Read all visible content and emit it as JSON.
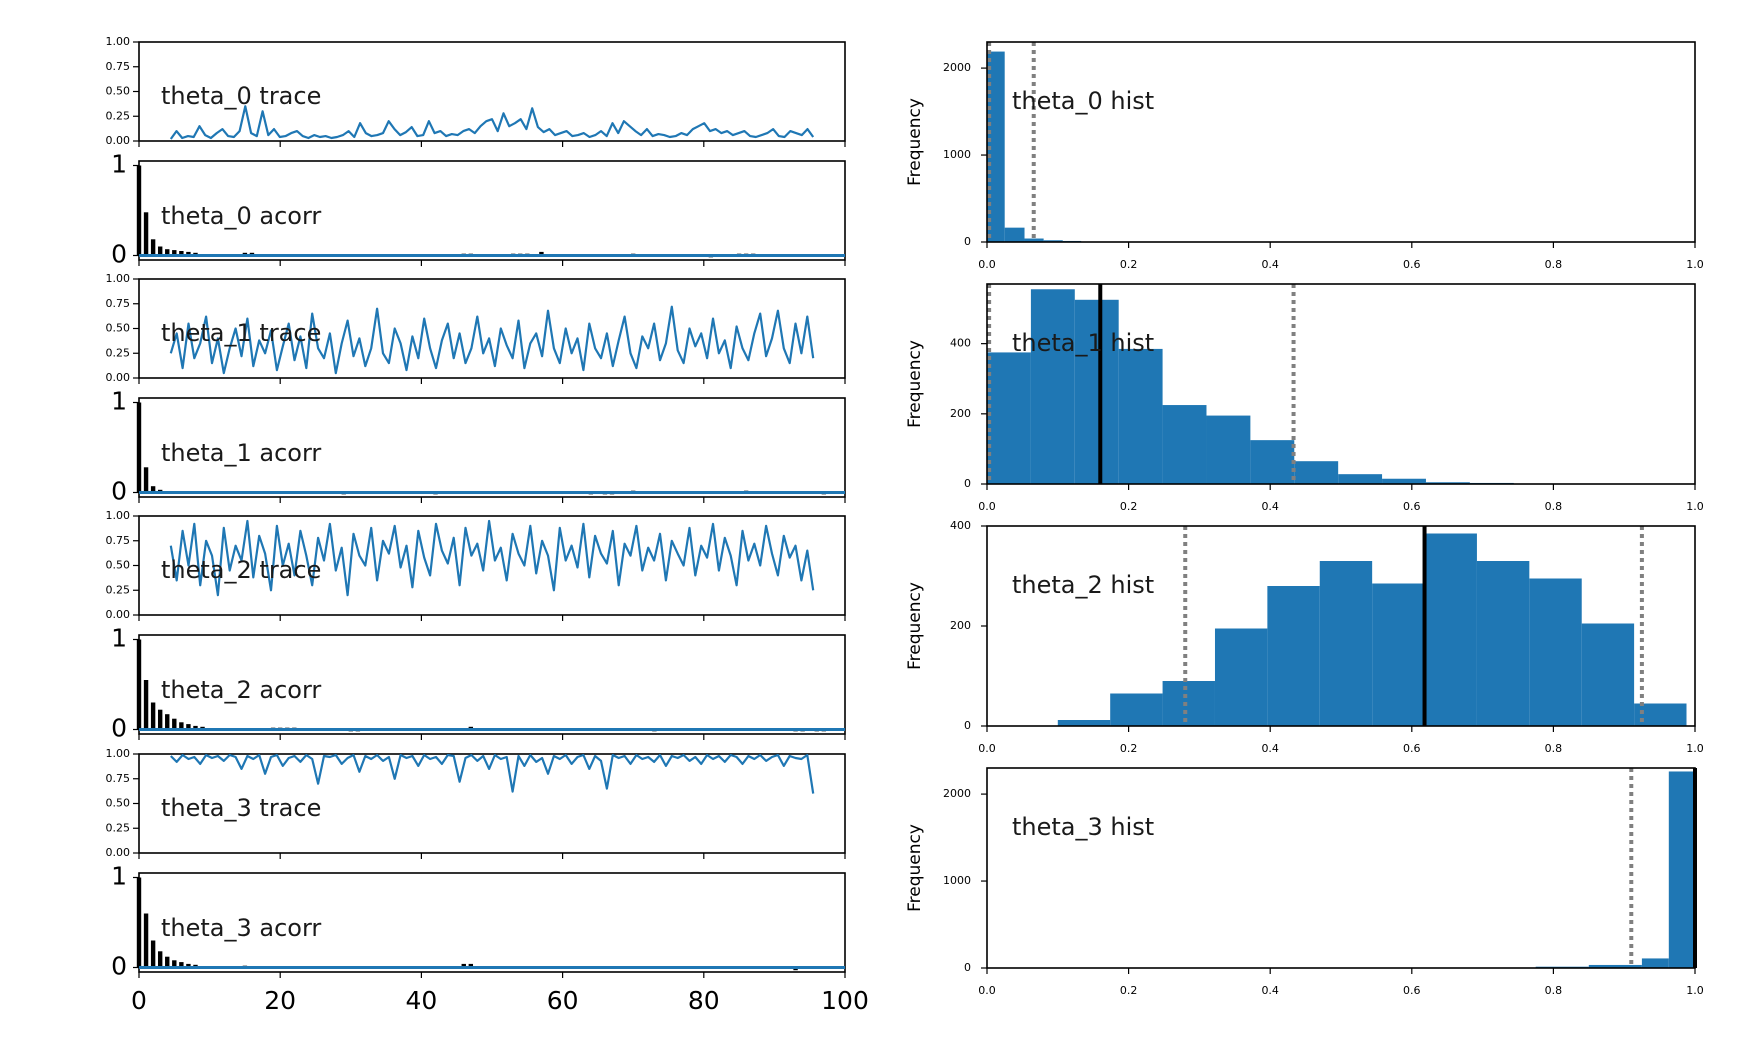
{
  "colors": {
    "series": "#1f77b4",
    "mean": "#000000",
    "hpd": "#808080",
    "acorr_bar": "#000000"
  },
  "chart_data": [
    {
      "id": "theta_0_trace",
      "type": "line",
      "title": "theta_0 trace",
      "xlim": [
        0,
        100
      ],
      "ylim": [
        0,
        1
      ],
      "yticks": [
        "0.00",
        "0.25",
        "0.50",
        "0.75",
        "1.00"
      ],
      "series": [
        {
          "values": [
            0.02,
            0.1,
            0.03,
            0.05,
            0.04,
            0.15,
            0.06,
            0.03,
            0.08,
            0.12,
            0.05,
            0.04,
            0.1,
            0.35,
            0.08,
            0.05,
            0.3,
            0.06,
            0.12,
            0.04,
            0.05,
            0.08,
            0.1,
            0.05,
            0.03,
            0.06,
            0.04,
            0.05,
            0.03,
            0.04,
            0.06,
            0.1,
            0.04,
            0.18,
            0.08,
            0.05,
            0.06,
            0.08,
            0.2,
            0.12,
            0.06,
            0.09,
            0.14,
            0.05,
            0.06,
            0.2,
            0.08,
            0.1,
            0.05,
            0.07,
            0.06,
            0.1,
            0.12,
            0.08,
            0.15,
            0.2,
            0.22,
            0.1,
            0.28,
            0.15,
            0.18,
            0.22,
            0.12,
            0.33,
            0.14,
            0.09,
            0.12,
            0.06,
            0.08,
            0.1,
            0.05,
            0.06,
            0.08,
            0.04,
            0.06,
            0.1,
            0.05,
            0.18,
            0.08,
            0.2,
            0.15,
            0.1,
            0.06,
            0.12,
            0.05,
            0.07,
            0.06,
            0.04,
            0.05,
            0.08,
            0.06,
            0.12,
            0.15,
            0.18,
            0.1,
            0.12,
            0.08,
            0.1,
            0.06,
            0.08,
            0.1,
            0.05,
            0.04,
            0.06,
            0.08,
            0.12,
            0.05,
            0.04,
            0.1,
            0.08,
            0.06,
            0.12,
            0.04
          ]
        }
      ]
    },
    {
      "id": "theta_0_acorr",
      "type": "bar",
      "title": "theta_0 acorr",
      "xlim": [
        0,
        100
      ],
      "ylim": [
        -0.05,
        1.05
      ],
      "yticks": [
        "0",
        "1"
      ],
      "lags": [
        0,
        1,
        2,
        3,
        4,
        5,
        6,
        7,
        8,
        15,
        16,
        46,
        47,
        53,
        54,
        55,
        57,
        70,
        81,
        85,
        86,
        87
      ],
      "values": [
        1.0,
        0.48,
        0.18,
        0.1,
        0.07,
        0.06,
        0.05,
        0.04,
        0.03,
        0.03,
        0.03,
        0.02,
        0.02,
        0.02,
        0.02,
        0.02,
        0.04,
        0.02,
        -0.02,
        0.02,
        0.02,
        0.02
      ]
    },
    {
      "id": "theta_1_trace",
      "type": "line",
      "title": "theta_1 trace",
      "xlim": [
        0,
        100
      ],
      "ylim": [
        0,
        1
      ],
      "yticks": [
        "0.00",
        "0.25",
        "0.50",
        "0.75",
        "1.00"
      ],
      "series": [
        {
          "values": [
            0.25,
            0.45,
            0.1,
            0.55,
            0.2,
            0.35,
            0.62,
            0.15,
            0.4,
            0.05,
            0.3,
            0.5,
            0.22,
            0.6,
            0.12,
            0.38,
            0.25,
            0.48,
            0.08,
            0.32,
            0.55,
            0.18,
            0.42,
            0.1,
            0.65,
            0.3,
            0.2,
            0.45,
            0.05,
            0.35,
            0.58,
            0.22,
            0.4,
            0.12,
            0.3,
            0.7,
            0.25,
            0.15,
            0.5,
            0.35,
            0.08,
            0.42,
            0.2,
            0.6,
            0.3,
            0.1,
            0.38,
            0.55,
            0.2,
            0.45,
            0.15,
            0.3,
            0.62,
            0.25,
            0.4,
            0.12,
            0.5,
            0.33,
            0.2,
            0.58,
            0.1,
            0.35,
            0.45,
            0.22,
            0.68,
            0.3,
            0.15,
            0.5,
            0.25,
            0.4,
            0.08,
            0.55,
            0.3,
            0.2,
            0.45,
            0.12,
            0.38,
            0.62,
            0.25,
            0.1,
            0.42,
            0.3,
            0.55,
            0.18,
            0.35,
            0.72,
            0.28,
            0.15,
            0.5,
            0.32,
            0.45,
            0.2,
            0.6,
            0.25,
            0.38,
            0.1,
            0.52,
            0.3,
            0.18,
            0.45,
            0.65,
            0.22,
            0.4,
            0.68,
            0.3,
            0.15,
            0.55,
            0.25,
            0.62,
            0.2
          ]
        }
      ]
    },
    {
      "id": "theta_1_acorr",
      "type": "bar",
      "title": "theta_1 acorr",
      "xlim": [
        0,
        100
      ],
      "ylim": [
        -0.05,
        1.05
      ],
      "yticks": [
        "0",
        "1"
      ],
      "lags": [
        0,
        1,
        2,
        3,
        29,
        42,
        64,
        66,
        67,
        70,
        86,
        97
      ],
      "values": [
        1.0,
        0.28,
        0.07,
        0.03,
        -0.02,
        -0.02,
        -0.02,
        -0.02,
        -0.02,
        0.02,
        0.02,
        -0.02
      ]
    },
    {
      "id": "theta_2_trace",
      "type": "line",
      "title": "theta_2 trace",
      "xlim": [
        0,
        100
      ],
      "ylim": [
        0,
        1
      ],
      "yticks": [
        "0.00",
        "0.25",
        "0.50",
        "0.75",
        "1.00"
      ],
      "series": [
        {
          "values": [
            0.7,
            0.35,
            0.85,
            0.5,
            0.92,
            0.3,
            0.75,
            0.6,
            0.2,
            0.88,
            0.45,
            0.7,
            0.55,
            0.95,
            0.38,
            0.8,
            0.62,
            0.25,
            0.9,
            0.5,
            0.72,
            0.4,
            0.85,
            0.6,
            0.3,
            0.78,
            0.55,
            0.92,
            0.45,
            0.68,
            0.2,
            0.82,
            0.6,
            0.5,
            0.88,
            0.35,
            0.75,
            0.62,
            0.9,
            0.48,
            0.7,
            0.28,
            0.85,
            0.58,
            0.4,
            0.92,
            0.65,
            0.52,
            0.78,
            0.3,
            0.88,
            0.6,
            0.72,
            0.45,
            0.95,
            0.55,
            0.68,
            0.35,
            0.82,
            0.62,
            0.5,
            0.9,
            0.42,
            0.75,
            0.6,
            0.25,
            0.88,
            0.55,
            0.7,
            0.48,
            0.92,
            0.38,
            0.8,
            0.62,
            0.52,
            0.85,
            0.3,
            0.72,
            0.6,
            0.9,
            0.45,
            0.68,
            0.55,
            0.82,
            0.35,
            0.75,
            0.62,
            0.5,
            0.88,
            0.4,
            0.7,
            0.58,
            0.92,
            0.45,
            0.78,
            0.6,
            0.3,
            0.85,
            0.55,
            0.72,
            0.5,
            0.9,
            0.62,
            0.4,
            0.8,
            0.58,
            0.7,
            0.35,
            0.65,
            0.25
          ]
        }
      ]
    },
    {
      "id": "theta_2_acorr",
      "type": "bar",
      "title": "theta_2 acorr",
      "xlim": [
        0,
        100
      ],
      "ylim": [
        -0.05,
        1.05
      ],
      "yticks": [
        "0",
        "1"
      ],
      "lags": [
        0,
        1,
        2,
        3,
        4,
        5,
        6,
        7,
        8,
        9,
        19,
        20,
        21,
        22,
        30,
        31,
        47,
        73,
        93,
        94,
        96,
        97
      ],
      "values": [
        1.0,
        0.55,
        0.3,
        0.22,
        0.17,
        0.12,
        0.08,
        0.06,
        0.04,
        0.03,
        0.02,
        0.02,
        0.02,
        0.02,
        -0.02,
        -0.02,
        0.03,
        -0.02,
        -0.02,
        -0.02,
        -0.02,
        -0.02
      ]
    },
    {
      "id": "theta_3_trace",
      "type": "line",
      "title": "theta_3 trace",
      "xlim": [
        0,
        100
      ],
      "ylim": [
        0,
        1
      ],
      "yticks": [
        "0.00",
        "0.25",
        "0.50",
        "0.75",
        "1.00"
      ],
      "series": [
        {
          "values": [
            0.98,
            0.92,
            0.99,
            0.95,
            0.97,
            0.9,
            0.99,
            0.96,
            0.98,
            0.93,
            0.99,
            0.97,
            0.85,
            0.98,
            0.95,
            0.99,
            0.8,
            0.97,
            0.99,
            0.88,
            0.96,
            0.98,
            0.92,
            0.99,
            0.95,
            0.7,
            0.98,
            0.97,
            0.99,
            0.9,
            0.96,
            0.99,
            0.82,
            0.98,
            0.95,
            0.99,
            0.93,
            0.97,
            0.75,
            0.99,
            0.96,
            0.98,
            0.88,
            0.99,
            0.95,
            0.97,
            0.9,
            0.99,
            0.98,
            0.72,
            0.96,
            0.99,
            0.93,
            0.98,
            0.85,
            0.99,
            0.95,
            0.97,
            0.62,
            0.98,
            0.88,
            0.99,
            0.92,
            0.96,
            0.8,
            0.98,
            0.95,
            0.99,
            0.9,
            0.97,
            0.99,
            0.85,
            0.98,
            0.93,
            0.65,
            0.99,
            0.96,
            0.98,
            0.9,
            0.99,
            0.95,
            0.97,
            0.92,
            0.99,
            0.88,
            0.98,
            0.96,
            0.99,
            0.93,
            0.97,
            0.9,
            0.99,
            0.95,
            0.98,
            0.92,
            0.99,
            0.97,
            0.9,
            0.98,
            0.95,
            0.99,
            0.93,
            0.97,
            0.99,
            0.88,
            0.98,
            0.96,
            0.95,
            0.99,
            0.6
          ]
        }
      ]
    },
    {
      "id": "theta_3_acorr",
      "type": "bar",
      "title": "theta_3 acorr",
      "xlim": [
        0,
        100
      ],
      "ylim": [
        -0.05,
        1.05
      ],
      "yticks": [
        "0",
        "1"
      ],
      "xticks": [
        "0",
        "20",
        "40",
        "60",
        "80",
        "100"
      ],
      "lags": [
        0,
        1,
        2,
        3,
        4,
        5,
        6,
        7,
        8,
        15,
        46,
        47,
        93
      ],
      "values": [
        1.0,
        0.6,
        0.3,
        0.18,
        0.12,
        0.08,
        0.06,
        0.04,
        0.03,
        0.02,
        0.04,
        0.04,
        -0.03
      ]
    },
    {
      "id": "theta_0_hist",
      "type": "bar",
      "title": "theta_0 hist",
      "xlim": [
        0,
        1
      ],
      "ylim": [
        0,
        2300
      ],
      "ylabel": "Frequency",
      "xticks": [
        "0.0",
        "0.2",
        "0.4",
        "0.6",
        "0.8",
        "1.0"
      ],
      "yticks": [
        {
          "v": 0,
          "label": "0"
        },
        {
          "v": 1000,
          "label": "1000"
        },
        {
          "v": 2000,
          "label": "2000"
        }
      ],
      "bins": [
        [
          0.0,
          0.025,
          2190
        ],
        [
          0.025,
          0.053,
          165
        ],
        [
          0.053,
          0.08,
          40
        ],
        [
          0.08,
          0.107,
          20
        ],
        [
          0.107,
          0.133,
          12
        ]
      ],
      "mean": null,
      "hpd": [
        0.003,
        0.066
      ]
    },
    {
      "id": "theta_1_hist",
      "type": "bar",
      "title": "theta_1 hist",
      "xlim": [
        0,
        1
      ],
      "ylim": [
        0,
        570
      ],
      "ylabel": "Frequency",
      "xticks": [
        "0.0",
        "0.2",
        "0.4",
        "0.6",
        "0.8",
        "1.0"
      ],
      "yticks": [
        {
          "v": 0,
          "label": "0"
        },
        {
          "v": 200,
          "label": "200"
        },
        {
          "v": 400,
          "label": "400"
        }
      ],
      "bins": [
        [
          0.0,
          0.062,
          375
        ],
        [
          0.062,
          0.124,
          555
        ],
        [
          0.124,
          0.186,
          525
        ],
        [
          0.186,
          0.248,
          385
        ],
        [
          0.248,
          0.31,
          225
        ],
        [
          0.31,
          0.372,
          195
        ],
        [
          0.372,
          0.434,
          125
        ],
        [
          0.434,
          0.496,
          65
        ],
        [
          0.496,
          0.558,
          28
        ],
        [
          0.558,
          0.62,
          15
        ],
        [
          0.62,
          0.682,
          5
        ],
        [
          0.682,
          0.744,
          3
        ]
      ],
      "mean": 0.16,
      "hpd": [
        0.003,
        0.433
      ]
    },
    {
      "id": "theta_2_hist",
      "type": "bar",
      "title": "theta_2 hist",
      "xlim": [
        0,
        1
      ],
      "ylim": [
        0,
        400
      ],
      "ylabel": "Frequency",
      "xticks": [
        "0.0",
        "0.2",
        "0.4",
        "0.6",
        "0.8",
        "1.0"
      ],
      "yticks": [
        {
          "v": 0,
          "label": "0"
        },
        {
          "v": 200,
          "label": "200"
        },
        {
          "v": 400,
          "label": "400"
        }
      ],
      "bins": [
        [
          0.1,
          0.174,
          12
        ],
        [
          0.174,
          0.248,
          65
        ],
        [
          0.248,
          0.322,
          90
        ],
        [
          0.322,
          0.396,
          195
        ],
        [
          0.396,
          0.47,
          280
        ],
        [
          0.47,
          0.544,
          330
        ],
        [
          0.544,
          0.618,
          285
        ],
        [
          0.618,
          0.692,
          385
        ],
        [
          0.692,
          0.766,
          330
        ],
        [
          0.766,
          0.84,
          295
        ],
        [
          0.84,
          0.914,
          205
        ],
        [
          0.914,
          0.988,
          45
        ]
      ],
      "mean": 0.618,
      "hpd": [
        0.28,
        0.925
      ]
    },
    {
      "id": "theta_3_hist",
      "type": "bar",
      "title": "theta_3 hist",
      "xlim": [
        0,
        1
      ],
      "ylim": [
        0,
        2300
      ],
      "ylabel": "Frequency",
      "xticks": [
        "0.0",
        "0.2",
        "0.4",
        "0.6",
        "0.8",
        "1.0"
      ],
      "yticks": [
        {
          "v": 0,
          "label": "0"
        },
        {
          "v": 1000,
          "label": "1000"
        },
        {
          "v": 2000,
          "label": "2000"
        }
      ],
      "bins": [
        [
          0.775,
          0.85,
          15
        ],
        [
          0.85,
          0.925,
          35
        ],
        [
          0.925,
          0.963,
          110
        ],
        [
          0.963,
          1.0,
          2260
        ]
      ],
      "mean": 1.0,
      "hpd": [
        0.91,
        1.0
      ]
    }
  ]
}
